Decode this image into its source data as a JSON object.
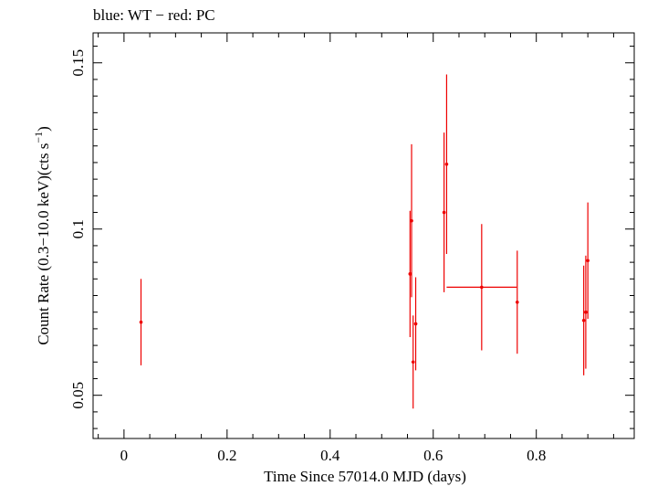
{
  "chart_data": {
    "type": "scatter",
    "title": "blue: WT − red: PC",
    "xlabel": "Time Since 57014.0 MJD (days)",
    "ylabel": "Count Rate (0.3−10.0 keV)(cts s",
    "ylabel_sup": "−1",
    "ylabel_end": ")",
    "xlim": [
      -0.06,
      0.99
    ],
    "ylim": [
      0.037,
      0.159
    ],
    "x_ticks": [
      0,
      0.2,
      0.4,
      0.6,
      0.8
    ],
    "x_tick_labels": [
      "0",
      "0.2",
      "0.4",
      "0.6",
      "0.8"
    ],
    "y_ticks": [
      0.05,
      0.1,
      0.15
    ],
    "y_tick_labels": [
      "0.05",
      "0.1",
      "0.15"
    ],
    "grid": false,
    "legend": "none",
    "series": [
      {
        "color": "#ee0000",
        "points": [
          {
            "x": 0.033,
            "y": 0.072,
            "xerr": 0.0,
            "yerr": 0.013
          },
          {
            "x": 0.555,
            "y": 0.0865,
            "xerr": 0.002,
            "yerr": 0.019
          },
          {
            "x": 0.558,
            "y": 0.1025,
            "xerr": 0.002,
            "yerr": 0.023
          },
          {
            "x": 0.561,
            "y": 0.06,
            "xerr": 0.002,
            "yerr": 0.014
          },
          {
            "x": 0.566,
            "y": 0.0715,
            "xerr": 0.003,
            "yerr": 0.014
          },
          {
            "x": 0.621,
            "y": 0.105,
            "xerr": 0.002,
            "yerr": 0.024
          },
          {
            "x": 0.626,
            "y": 0.1195,
            "xerr": 0.002,
            "yerr": 0.027
          },
          {
            "x": 0.694,
            "y": 0.0825,
            "xerr": 0.068,
            "yerr": 0.019
          },
          {
            "x": 0.763,
            "y": 0.078,
            "xerr": 0.0,
            "yerr": 0.0155
          },
          {
            "x": 0.892,
            "y": 0.0725,
            "xerr": 0.002,
            "yerr": 0.0165
          },
          {
            "x": 0.896,
            "y": 0.075,
            "xerr": 0.002,
            "yerr": 0.017
          },
          {
            "x": 0.9,
            "y": 0.0905,
            "xerr": 0.002,
            "yerr": 0.0175
          }
        ]
      }
    ]
  }
}
